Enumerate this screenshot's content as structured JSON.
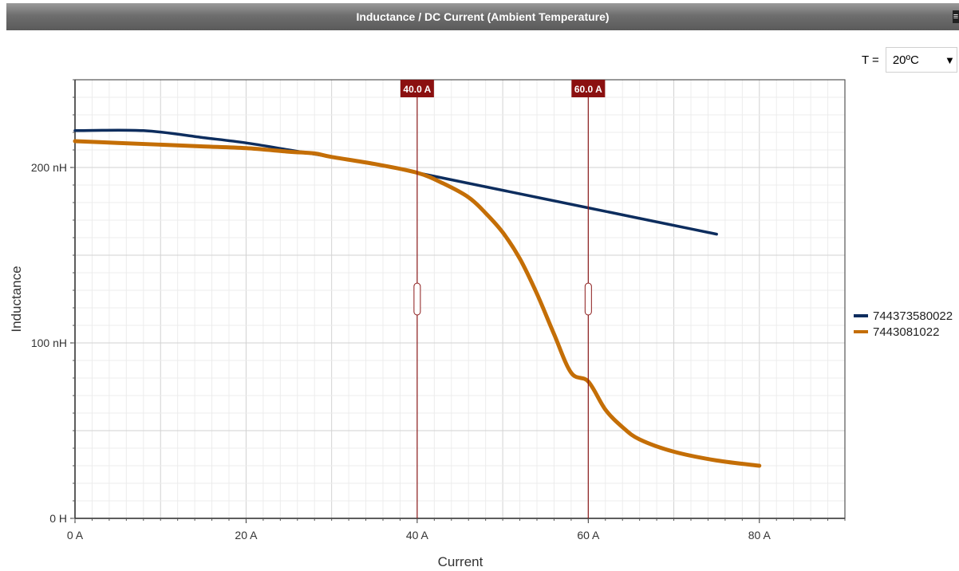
{
  "window": {
    "title": "Inductance / DC Current (Ambient Temperature)"
  },
  "controls": {
    "temperature_label": "T =",
    "temperature_value": "20ºC",
    "dropdown_arrow_icon": "triangle-down-icon"
  },
  "colors": {
    "series_1": "#0d2d5e",
    "series_2": "#c46e06",
    "cursor": "#8b1a1a",
    "grid": "#dcdcdc"
  },
  "chart_data": {
    "type": "line",
    "title": "Inductance / DC Current (Ambient Temperature)",
    "xlabel": "Current",
    "ylabel": "Inductance",
    "xlim": [
      0,
      90
    ],
    "ylim": [
      0,
      250
    ],
    "x_ticks": [
      0,
      20,
      40,
      60,
      80
    ],
    "x_tick_labels": [
      "0 A",
      "20 A",
      "40 A",
      "60 A",
      "80 A"
    ],
    "y_ticks": [
      0,
      100,
      200
    ],
    "y_tick_labels": [
      "0 H",
      "100 nH",
      "200 nH"
    ],
    "grid": true,
    "legend_position": "right",
    "cursors": [
      {
        "x": 40,
        "label": "40.0 A"
      },
      {
        "x": 60,
        "label": "60.0 A"
      }
    ],
    "series": [
      {
        "name": "744373580022",
        "color": "#0d2d5e",
        "x": [
          0,
          8,
          15,
          20,
          25,
          30,
          35,
          40,
          45,
          50,
          55,
          60,
          65,
          70,
          75
        ],
        "y": [
          221,
          221,
          217,
          214,
          210,
          206,
          202,
          197,
          192,
          187,
          182,
          177,
          172,
          167,
          162
        ]
      },
      {
        "name": "7443081022",
        "color": "#c46e06",
        "x": [
          0,
          5,
          10,
          15,
          20,
          25,
          28,
          30,
          35,
          40,
          43,
          46,
          48,
          50,
          52,
          54,
          56,
          58,
          60,
          62,
          64,
          66,
          70,
          75,
          80
        ],
        "y": [
          215,
          214,
          213,
          212,
          211,
          209,
          208,
          206,
          202,
          197,
          191,
          183,
          174,
          163,
          148,
          128,
          105,
          83,
          78,
          62,
          52,
          45,
          38,
          33,
          30
        ]
      }
    ]
  }
}
